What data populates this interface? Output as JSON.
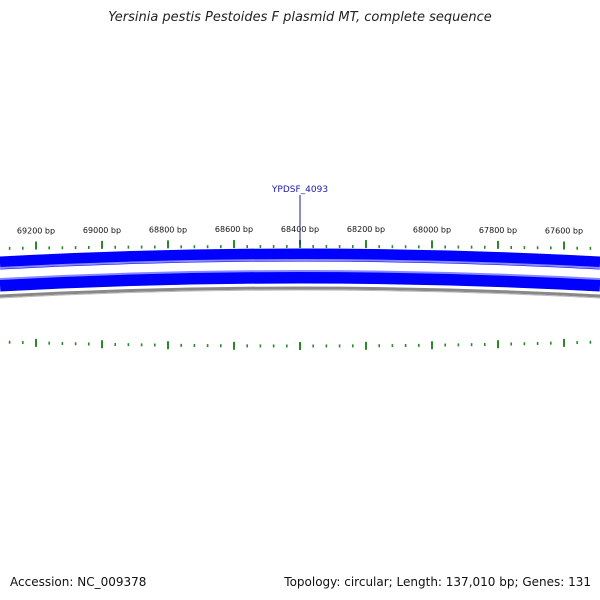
{
  "title": "Yersinia pestis Pestoides F plasmid MT, complete sequence",
  "gene_label": "YPDSF_4093",
  "footer": {
    "accession": "Accession: NC_009378",
    "stats": "Topology: circular; Length: 137,010 bp; Genes: 131"
  },
  "scale_labels": [
    "69200 bp",
    "69000 bp",
    "68800 bp",
    "68600 bp",
    "68400 bp",
    "68200 bp",
    "68000 bp",
    "67800 bp",
    "67600 bp"
  ],
  "colors": {
    "strand": "#0000ff",
    "strand_light": "#8888ff",
    "backbone": "#888888",
    "tick": "#2a8a2a",
    "gene_line": "#1a1aa8"
  }
}
